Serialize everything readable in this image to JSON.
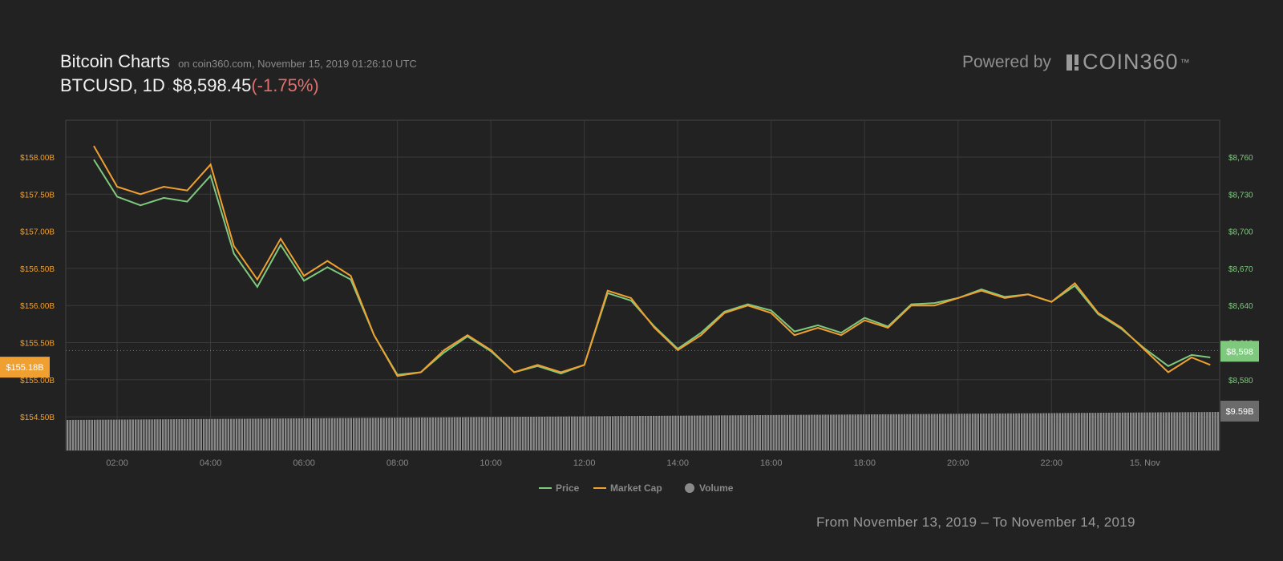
{
  "header": {
    "title": "Bitcoin Charts",
    "subtitle": "on coin360.com, November 15, 2019 01:26:10 UTC",
    "pair": "BTCUSD, 1D",
    "price": "$8,598.45",
    "change": "(-1.75%)",
    "powered_by": "Powered by",
    "brand": "COIN360",
    "brand_tm": "™"
  },
  "footer": {
    "date_range": "From November 13, 2019 – To November 14, 2019"
  },
  "colors": {
    "price": "#7fc97f",
    "market_cap": "#f0a030",
    "volume": "#8a8a8a",
    "background": "#222222",
    "change": "#e07070"
  },
  "chart_data": {
    "type": "line",
    "x_ticks": [
      "02:00",
      "04:00",
      "06:00",
      "08:00",
      "10:00",
      "12:00",
      "14:00",
      "16:00",
      "18:00",
      "20:00",
      "22:00",
      "15. Nov"
    ],
    "y_left": {
      "label": "Market Cap",
      "ticks": [
        "$158.00B",
        "$157.50B",
        "$157.00B",
        "$156.50B",
        "$156.00B",
        "$155.50B",
        "$155.00B",
        "$154.50B"
      ],
      "range": [
        154.5,
        158.0
      ]
    },
    "y_right": {
      "label": "Price",
      "ticks": [
        "$8,760",
        "$8,730",
        "$8,700",
        "$8,670",
        "$8,640",
        "$8,610",
        "$8,580"
      ],
      "range": [
        8580,
        8760
      ]
    },
    "current_market_cap_label": "$155.18B",
    "current_price_label": "$8,598",
    "current_volume_label": "$9.59B",
    "legend": [
      "Price",
      "Market Cap",
      "Volume"
    ],
    "x_hours": [
      1.5,
      2,
      2.5,
      3,
      3.5,
      4,
      4.5,
      5,
      5.5,
      6,
      6.5,
      7,
      7.5,
      8,
      8.5,
      9,
      9.5,
      10,
      10.5,
      11,
      11.5,
      12,
      12.5,
      13,
      13.5,
      14,
      14.5,
      15,
      15.5,
      16,
      16.5,
      17,
      17.5,
      18,
      18.5,
      19,
      19.5,
      20,
      20.5,
      21,
      21.5,
      22,
      22.5,
      23,
      23.5,
      24,
      24.5,
      25,
      25.4
    ],
    "series": [
      {
        "name": "Market Cap",
        "values": [
          158.15,
          157.6,
          157.5,
          157.6,
          157.55,
          157.9,
          156.8,
          156.35,
          156.9,
          156.4,
          156.6,
          156.4,
          155.6,
          155.05,
          155.1,
          155.4,
          155.6,
          155.4,
          155.1,
          155.2,
          155.1,
          155.2,
          156.2,
          156.1,
          155.7,
          155.4,
          155.6,
          155.9,
          156.0,
          155.9,
          155.6,
          155.7,
          155.6,
          155.8,
          155.7,
          156.0,
          156.0,
          156.1,
          156.2,
          156.1,
          156.15,
          156.05,
          156.3,
          155.9,
          155.7,
          155.4,
          155.1,
          155.3,
          155.2
        ]
      },
      {
        "name": "Price",
        "values": [
          8758,
          8728,
          8721,
          8727,
          8724,
          8745,
          8682,
          8655,
          8689,
          8660,
          8671,
          8661,
          8616,
          8584,
          8586,
          8602,
          8615,
          8603,
          8586,
          8591,
          8585,
          8592,
          8650,
          8644,
          8623,
          8605,
          8618,
          8635,
          8641,
          8636,
          8619,
          8624,
          8618,
          8630,
          8623,
          8641,
          8642,
          8646,
          8653,
          8647,
          8649,
          8643,
          8656,
          8633,
          8621,
          8605,
          8591,
          8600,
          8598
        ]
      }
    ]
  }
}
